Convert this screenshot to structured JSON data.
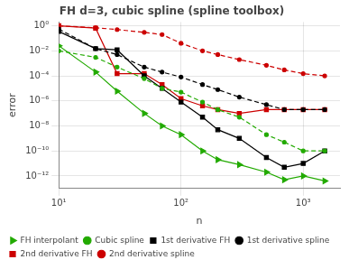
{
  "chart_data": {
    "type": "line",
    "title": "FH d=3, cubic spline (spline toolbox)",
    "xlabel": "n",
    "ylabel": "error",
    "log": true,
    "grid": true,
    "legend": "lower left",
    "x": [
      10,
      20,
      30,
      50,
      70,
      100,
      150,
      200,
      300,
      500,
      700,
      1000,
      1500
    ],
    "xlim": [
      10,
      2000
    ],
    "ylim": [
      1e-13,
      2.0
    ],
    "xticks": [
      {
        "value": 10,
        "label": "10¹"
      },
      {
        "value": 100,
        "label": "10²"
      },
      {
        "value": 1000,
        "label": "10³"
      }
    ],
    "yticks": [
      {
        "value": 1e-12,
        "label": "10⁻¹²"
      },
      {
        "value": 1e-10,
        "label": "10⁻¹⁰"
      },
      {
        "value": 1e-08,
        "label": "10⁻⁸"
      },
      {
        "value": 1e-06,
        "label": "10⁻⁶"
      },
      {
        "value": 0.0001,
        "label": "10⁻⁴"
      },
      {
        "value": 0.01,
        "label": "10⁻²"
      },
      {
        "value": 1,
        "label": "10⁰"
      }
    ],
    "series": [
      {
        "name": "FH interpolant",
        "color": "#22aa00",
        "marker": "triangle_right",
        "line_style": "solid",
        "values": [
          0.025,
          0.0002,
          6e-06,
          1e-07,
          1e-08,
          2e-09,
          1e-10,
          2e-11,
          8e-12,
          2e-12,
          5e-13,
          1e-12,
          4e-13
        ]
      },
      {
        "name": "Cubic spline",
        "color": "#22aa00",
        "marker": "point",
        "line_style": "dashed",
        "values": [
          0.01,
          0.003,
          0.0005,
          6e-05,
          1e-05,
          5e-06,
          8e-07,
          2e-07,
          5e-08,
          2e-09,
          5e-10,
          1e-10,
          1e-10
        ]
      },
      {
        "name": "1st derivative FH",
        "color": "#000000",
        "marker": "square",
        "line_style": "solid",
        "values": [
          0.35,
          0.015,
          0.012,
          0.0001,
          1e-05,
          8e-07,
          5e-08,
          5e-09,
          1e-09,
          3e-11,
          5e-12,
          1e-11,
          1e-10
        ]
      },
      {
        "name": "1st derivative spline",
        "color": "#000000",
        "marker": "point",
        "line_style": "dashed",
        "values": [
          0.55,
          0.015,
          0.005,
          0.0005,
          0.0002,
          8e-05,
          2e-05,
          8e-06,
          2e-06,
          5e-07,
          2e-07,
          2e-07,
          2e-07
        ]
      },
      {
        "name": "2nd derivative FH",
        "color": "#cc0000",
        "marker": "square",
        "line_style": "solid",
        "values": [
          1.0,
          0.65,
          0.00015,
          0.00015,
          2e-05,
          1.5e-06,
          4e-07,
          2e-07,
          1e-07,
          2e-07,
          2e-07,
          2e-07,
          2e-07
        ]
      },
      {
        "name": "2nd derivative spline",
        "color": "#cc0000",
        "marker": "point",
        "line_style": "dashed",
        "values": [
          1.0,
          0.7,
          0.5,
          0.3,
          0.2,
          0.04,
          0.01,
          0.005,
          0.002,
          0.0007,
          0.0003,
          0.00015,
          0.0001
        ]
      }
    ]
  }
}
